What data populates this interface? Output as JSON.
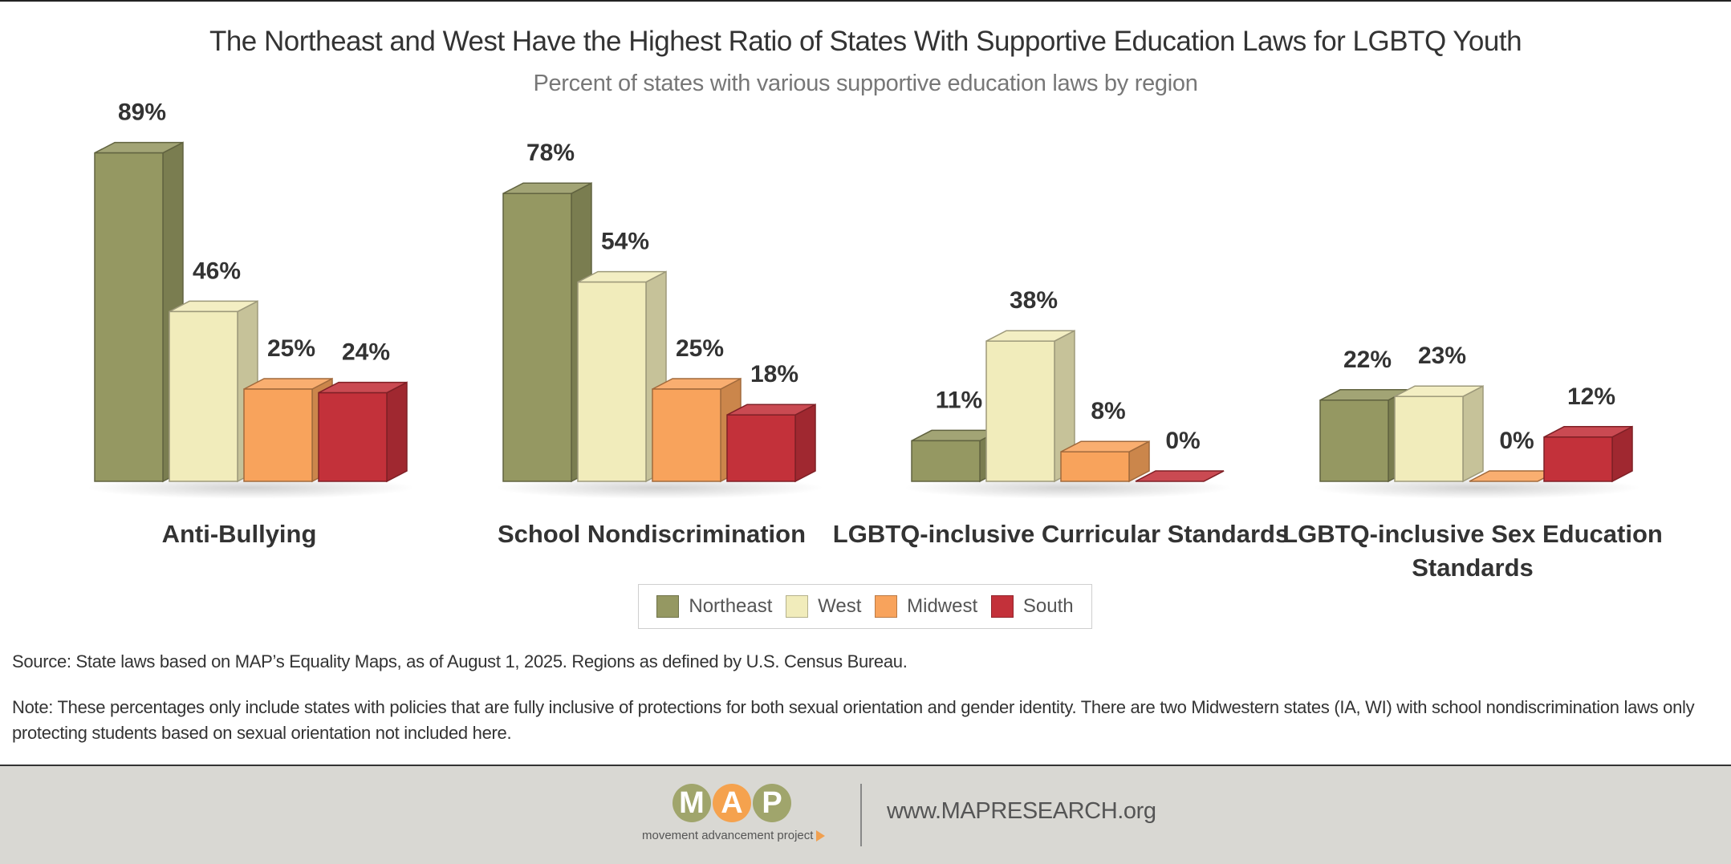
{
  "title": "The Northeast and West Have the Highest Ratio of States With Supportive Education Laws for LGBTQ Youth",
  "subtitle": "Percent of states with various supportive education laws by region",
  "chart_data": {
    "type": "bar",
    "title": "The Northeast and West Have the Highest Ratio of States With Supportive Education Laws for LGBTQ Youth",
    "subtitle": "Percent of states with various supportive education laws by region",
    "categories": [
      "Anti-Bullying",
      "School Nondiscrimination",
      "LGBTQ-inclusive Curricular Standards",
      "LGBTQ-inclusive Sex Education Standards"
    ],
    "series": [
      {
        "name": "Northeast",
        "values": [
          89,
          78,
          11,
          22
        ],
        "labels": [
          "89%",
          "78%",
          "11%",
          "22%"
        ],
        "color": "#959862"
      },
      {
        "name": "West",
        "values": [
          46,
          54,
          38,
          23
        ],
        "labels": [
          "46%",
          "54%",
          "38%",
          "23%"
        ],
        "color": "#f1ecbb"
      },
      {
        "name": "Midwest",
        "values": [
          25,
          25,
          8,
          0
        ],
        "labels": [
          "25%",
          "25%",
          "8%",
          "0%"
        ],
        "color": "#f8a35c"
      },
      {
        "name": "South",
        "values": [
          24,
          18,
          0,
          12
        ],
        "labels": [
          "24%",
          "18%",
          "0%",
          "12%"
        ],
        "color": "#c3313a"
      }
    ],
    "ylim": [
      0,
      100
    ],
    "grid": false,
    "legend_position": "bottom"
  },
  "legend": {
    "items": [
      {
        "label": "Northeast",
        "color": "#959862"
      },
      {
        "label": "West",
        "color": "#f1ecbb"
      },
      {
        "label": "Midwest",
        "color": "#f8a35c"
      },
      {
        "label": "South",
        "color": "#c3313a"
      }
    ]
  },
  "source": "Source: State laws based on MAP’s Equality Maps, as of August 1, 2025. Regions as defined by U.S. Census Bureau.",
  "note": "Note: These percentages only include states with policies that are fully inclusive of protections for both sexual orientation and gender identity. There are two Midwestern states (IA, WI) with school nondiscrimination laws only protecting students based on sexual orientation not included here.",
  "footer": {
    "logo_letters": [
      "M",
      "A",
      "P"
    ],
    "logo_colors": [
      "#a0a56c",
      "#f5a24e",
      "#a0a56c"
    ],
    "logo_tagline": "movement advancement project",
    "url": "www.MAPRESEARCH.org"
  }
}
